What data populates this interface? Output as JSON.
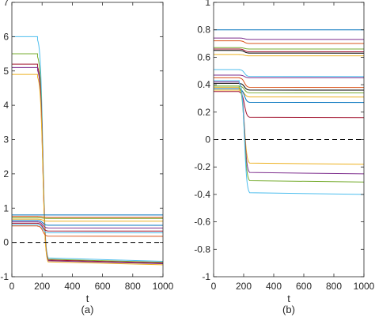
{
  "chart_data": [
    {
      "type": "line",
      "panel_label": "(a)",
      "xlabel": "t",
      "ylabel": "",
      "xlim": [
        0,
        1000
      ],
      "ylim": [
        -1,
        7
      ],
      "xticks": [
        0,
        200,
        400,
        600,
        800,
        1000
      ],
      "yticks": [
        -1,
        0,
        1,
        2,
        3,
        4,
        5,
        6,
        7
      ],
      "grid": false,
      "transition": {
        "start": 180,
        "end": 230
      },
      "reference_line": {
        "y": 0,
        "style": "dashed",
        "color": "#000000"
      },
      "series": [
        {
          "color": "#4DBEEE",
          "values": [
            6.0,
            -0.55
          ]
        },
        {
          "color": "#77AC30",
          "values": [
            5.5,
            -0.58
          ]
        },
        {
          "color": "#A2142F",
          "values": [
            5.2,
            -0.6
          ]
        },
        {
          "color": "#7E2F8E",
          "values": [
            5.1,
            -0.62
          ]
        },
        {
          "color": "#EDB120",
          "values": [
            4.9,
            -0.65
          ]
        },
        {
          "color": "#0072BD",
          "values": [
            0.8,
            0.8
          ]
        },
        {
          "color": "#D95319",
          "values": [
            0.76,
            0.73
          ]
        },
        {
          "color": "#77AC30",
          "values": [
            0.72,
            0.7
          ]
        },
        {
          "color": "#EDB120",
          "values": [
            0.68,
            0.62
          ]
        },
        {
          "color": "#0072BD",
          "values": [
            0.64,
            0.5
          ]
        },
        {
          "color": "#7E2F8E",
          "values": [
            0.6,
            0.42
          ]
        },
        {
          "color": "#A2142F",
          "values": [
            0.56,
            0.33
          ]
        },
        {
          "color": "#4DBEEE",
          "values": [
            0.52,
            0.28
          ]
        },
        {
          "color": "#D95319",
          "values": [
            0.48,
            0.18
          ]
        }
      ]
    },
    {
      "type": "line",
      "panel_label": "(b)",
      "xlabel": "t",
      "ylabel": "",
      "xlim": [
        0,
        1000
      ],
      "ylim": [
        -1,
        1
      ],
      "xticks": [
        0,
        200,
        400,
        600,
        800,
        1000
      ],
      "yticks": [
        -1,
        -0.8,
        -0.6,
        -0.4,
        -0.2,
        0,
        0.2,
        0.4,
        0.6,
        0.8,
        1
      ],
      "grid": false,
      "transition": {
        "start": 180,
        "end": 230
      },
      "reference_line": {
        "y": 0,
        "style": "dashed",
        "color": "#000000"
      },
      "series": [
        {
          "color": "#0072BD",
          "values": [
            0.8,
            0.8
          ]
        },
        {
          "color": "#7E2F8E",
          "values": [
            0.74,
            0.73
          ]
        },
        {
          "color": "#D95319",
          "values": [
            0.72,
            0.7
          ]
        },
        {
          "color": "#77AC30",
          "values": [
            0.67,
            0.66
          ]
        },
        {
          "color": "#A2142F",
          "values": [
            0.66,
            0.64
          ]
        },
        {
          "color": "#000000",
          "values": [
            0.65,
            0.63
          ]
        },
        {
          "color": "#EDB120",
          "values": [
            0.62,
            0.61
          ]
        },
        {
          "color": "#4DBEEE",
          "values": [
            0.51,
            0.46
          ]
        },
        {
          "color": "#7E2F8E",
          "values": [
            0.47,
            0.45
          ]
        },
        {
          "color": "#D95319",
          "values": [
            0.45,
            0.38
          ]
        },
        {
          "color": "#000000",
          "values": [
            0.41,
            0.36
          ]
        },
        {
          "color": "#77AC30",
          "values": [
            0.39,
            0.34
          ]
        },
        {
          "color": "#EDB120",
          "values": [
            0.36,
            0.31
          ]
        },
        {
          "color": "#0072BD",
          "values": [
            0.37,
            0.27
          ]
        },
        {
          "color": "#A2142F",
          "values": [
            0.35,
            0.16
          ]
        },
        {
          "color": "#EDB120",
          "values": [
            0.38,
            -0.18
          ]
        },
        {
          "color": "#7E2F8E",
          "values": [
            0.42,
            -0.25
          ]
        },
        {
          "color": "#77AC30",
          "values": [
            0.39,
            -0.31
          ]
        },
        {
          "color": "#4DBEEE",
          "values": [
            0.43,
            -0.4
          ]
        }
      ]
    }
  ]
}
